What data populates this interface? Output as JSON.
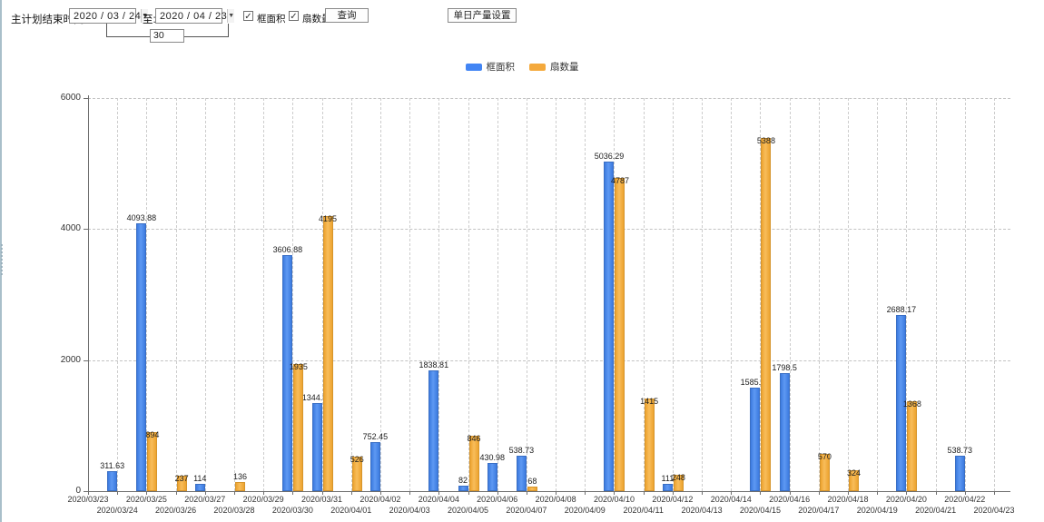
{
  "toolbar": {
    "end_time_label": "主计划结束时间:",
    "date_from": "2020 / 03 / 24",
    "to_label": "至:",
    "date_to": "2020 / 04 / 23",
    "interval_days": "30",
    "checkbox_frame_area": {
      "label": "框面积",
      "checked": true
    },
    "checkbox_fan_count": {
      "label": "扇数量",
      "checked": true
    },
    "query_button": "查询",
    "daily_output_button": "单日产量设置",
    "check_glyph": "✓",
    "dropdown_glyph": "▼"
  },
  "legend": {
    "items": [
      {
        "label": "框面积",
        "color": "#4285f4"
      },
      {
        "label": "扇数量",
        "color": "#f4a93c"
      }
    ]
  },
  "chart_data": {
    "type": "bar",
    "title": "",
    "xlabel": "",
    "ylabel": "",
    "ylim": [
      0,
      6000
    ],
    "yticks": [
      0,
      2000,
      4000,
      6000
    ],
    "grid": true,
    "legend_position": "top",
    "categories": [
      "2020/03/23",
      "2020/03/24",
      "2020/03/25",
      "2020/03/26",
      "2020/03/27",
      "2020/03/28",
      "2020/03/29",
      "2020/03/30",
      "2020/03/31",
      "2020/04/01",
      "2020/04/02",
      "2020/04/03",
      "2020/04/04",
      "2020/04/05",
      "2020/04/06",
      "2020/04/07",
      "2020/04/08",
      "2020/04/09",
      "2020/04/10",
      "2020/04/11",
      "2020/04/12",
      "2020/04/13",
      "2020/04/14",
      "2020/04/15",
      "2020/04/16",
      "2020/04/17",
      "2020/04/18",
      "2020/04/19",
      "2020/04/20",
      "2020/04/21",
      "2020/04/22",
      "2020/04/23"
    ],
    "series": [
      {
        "name": "框面积",
        "color": "#4285f4",
        "values": [
          0,
          311.63,
          4093.88,
          0,
          114,
          0,
          0,
          3606.88,
          1344.95,
          0,
          752.45,
          0,
          1838.81,
          82,
          430.98,
          538.73,
          0,
          0,
          5036.29,
          0,
          111,
          0,
          0,
          1585.96,
          1798.5,
          0,
          0,
          0,
          2688.17,
          0,
          538.73,
          0
        ]
      },
      {
        "name": "扇数量",
        "color": "#f4a93c",
        "values": [
          0,
          0,
          894,
          237,
          0,
          136,
          0,
          1935,
          4195,
          526,
          0,
          0,
          0,
          846,
          0,
          68,
          0,
          0,
          4787,
          1415,
          248,
          0,
          0,
          5388,
          0,
          570,
          324,
          0,
          1368,
          0,
          0,
          0
        ]
      }
    ]
  }
}
